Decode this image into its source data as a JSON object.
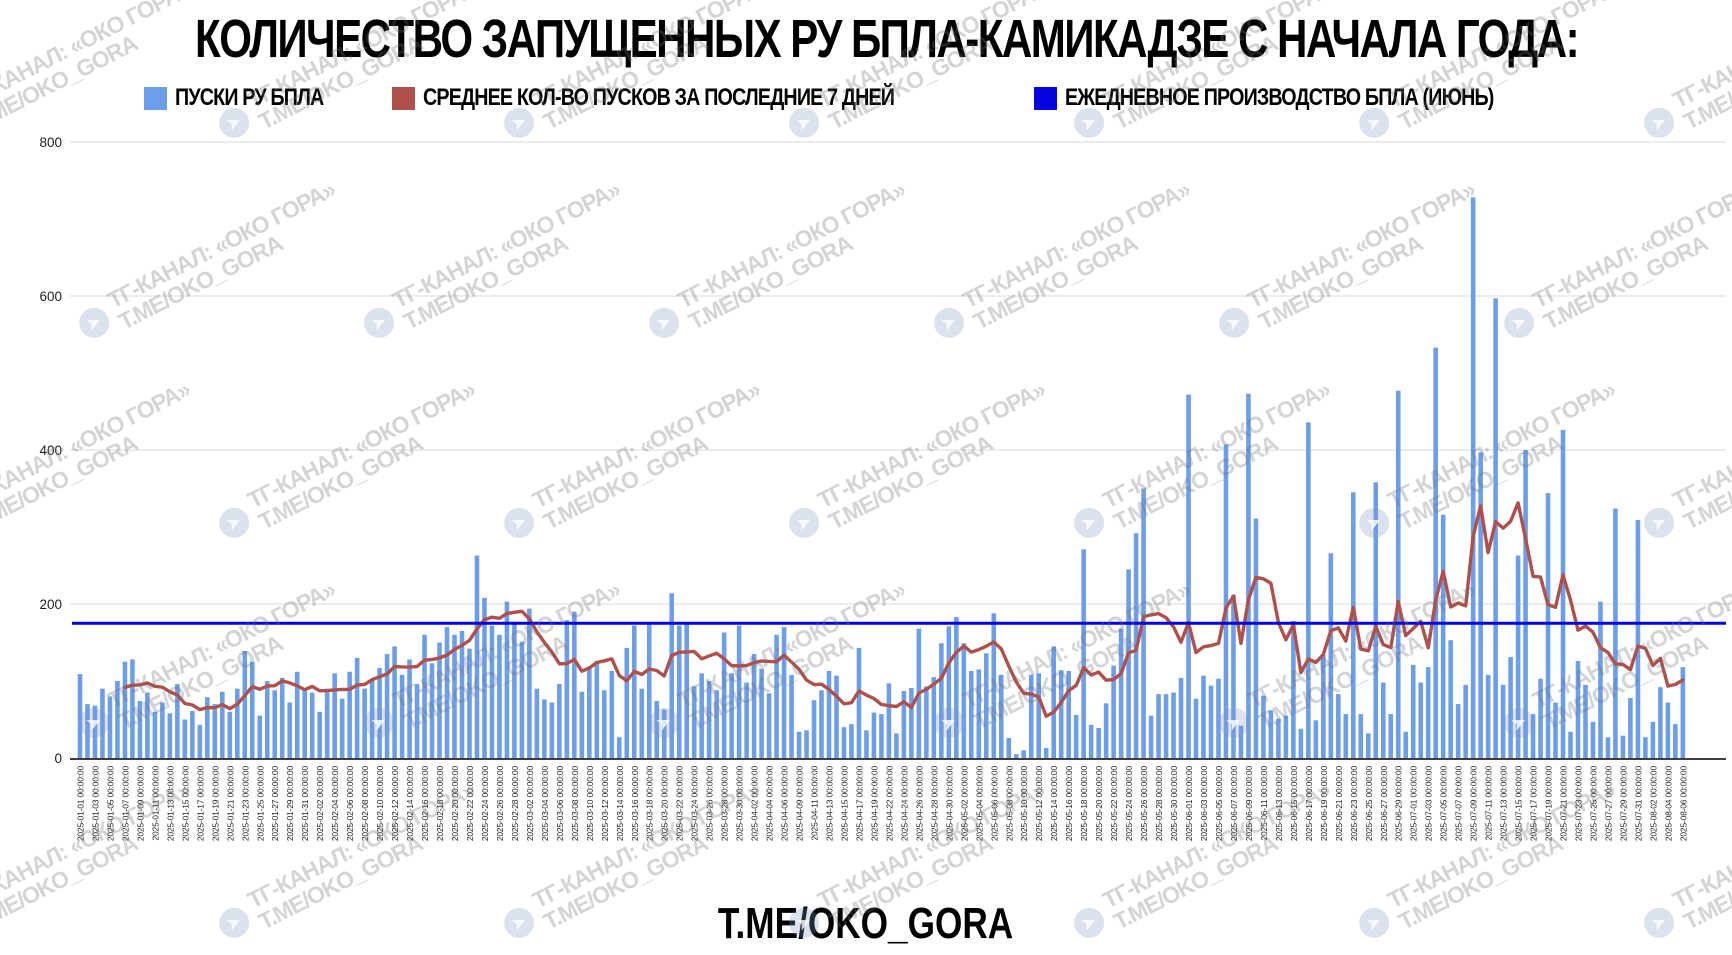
{
  "title": "КОЛИЧЕСТВО ЗАПУЩЕННЫХ РУ БПЛА-КАМИКАДЗЕ С НАЧАЛА ГОДА:",
  "footer": "T.ME/OKO_GORA",
  "watermark": {
    "line1": "ТГ-КАНАЛ: «ОКО ГОРА»",
    "line2": "T.ME/OKO_GORA"
  },
  "colors": {
    "bars": "#6d9eeb",
    "avg_line": "#b0504a",
    "production_line": "#0404e0",
    "grid": "#d9d9d9",
    "axis": "#3f3f3f",
    "tick_text": "#1f1f1f"
  },
  "legend": [
    {
      "label": "ПУСКИ РУ БПЛА",
      "color": "#6d9eeb"
    },
    {
      "label": "СРЕДНЕЕ КОЛ-ВО ПУСКОВ ЗА ПОСЛЕДНИЕ 7 ДНЕЙ",
      "color": "#b0504a"
    },
    {
      "label": "ЕЖЕДНЕВНОЕ ПРОИЗВОДСТВО БПЛА (ИЮНЬ)",
      "color": "#0404e0"
    }
  ],
  "chart_data": {
    "type": "bar",
    "title": "КОЛИЧЕСТВО ЗАПУЩЕННЫХ РУ БПЛА-КАМИКАДЗЕ С НАЧАЛА ГОДА:",
    "xlabel": "",
    "ylabel": "",
    "ylim": [
      0,
      800
    ],
    "yticks": [
      0,
      200,
      400,
      600,
      800
    ],
    "grid": true,
    "legend_position": "top",
    "tick_time_suffix": " 00:00:00",
    "x_tick_dates": [
      "2025-01-01",
      "2025-01-03",
      "2025-01-05",
      "2025-01-07",
      "2025-01-09",
      "2025-01-11",
      "2025-01-13",
      "2025-01-15",
      "2025-01-17",
      "2025-01-19",
      "2025-01-21",
      "2025-01-23",
      "2025-01-25",
      "2025-01-27",
      "2025-01-29",
      "2025-01-31",
      "2025-02-02",
      "2025-02-04",
      "2025-02-06",
      "2025-02-08",
      "2025-02-10",
      "2025-02-12",
      "2025-02-14",
      "2025-02-16",
      "2025-02-18",
      "2025-02-20",
      "2025-02-22",
      "2025-02-24",
      "2025-02-26",
      "2025-02-28",
      "2025-03-02",
      "2025-03-04",
      "2025-03-06",
      "2025-03-08",
      "2025-03-10",
      "2025-03-12",
      "2025-03-14",
      "2025-03-16",
      "2025-03-18",
      "2025-03-20",
      "2025-03-22",
      "2025-03-24",
      "2025-03-26",
      "2025-03-28",
      "2025-03-30",
      "2025-04-02",
      "2025-04-04",
      "2025-04-06",
      "2025-04-09",
      "2025-04-11",
      "2025-04-13",
      "2025-04-15",
      "2025-04-17",
      "2025-04-19",
      "2025-04-22",
      "2025-04-24",
      "2025-04-26",
      "2025-04-28",
      "2025-04-30",
      "2025-05-02",
      "2025-05-04",
      "2025-05-06",
      "2025-05-08",
      "2025-05-10",
      "2025-05-12",
      "2025-05-14",
      "2025-05-16",
      "2025-05-18",
      "2025-05-20",
      "2025-05-22",
      "2025-05-24",
      "2025-05-26",
      "2025-05-28",
      "2025-05-30",
      "2025-06-01",
      "2025-06-03",
      "2025-06-05",
      "2025-06-07",
      "2025-06-09",
      "2025-06-11",
      "2025-06-13",
      "2025-06-15",
      "2025-06-17",
      "2025-06-19",
      "2025-06-21",
      "2025-06-23",
      "2025-06-25",
      "2025-06-27",
      "2025-06-29",
      "2025-07-01",
      "2025-07-03",
      "2025-07-05",
      "2025-07-07",
      "2025-07-09",
      "2025-07-11",
      "2025-07-13",
      "2025-07-15",
      "2025-07-17",
      "2025-07-19",
      "2025-07-21",
      "2025-07-23",
      "2025-07-25",
      "2025-07-27",
      "2025-07-29",
      "2025-07-31",
      "2025-08-02",
      "2025-08-04",
      "2025-08-06"
    ],
    "series": [
      {
        "name": "ПУСКИ РУ БПЛА",
        "type": "bar",
        "color": "#6d9eeb",
        "values": [
          109,
          70,
          68,
          90,
          80,
          100,
          125,
          128,
          74,
          85,
          60,
          72,
          58,
          96,
          50,
          61,
          43,
          79,
          70,
          86,
          60,
          90,
          139,
          125,
          55,
          100,
          88,
          104,
          72,
          112,
          90,
          85,
          60,
          90,
          110,
          77,
          112,
          130,
          90,
          103,
          117,
          135,
          145,
          108,
          128,
          96,
          160,
          123,
          150,
          170,
          160,
          165,
          142,
          263,
          208,
          172,
          160,
          203,
          177,
          151,
          194,
          90,
          76,
          72,
          96,
          179,
          190,
          86,
          119,
          126,
          88,
          113,
          27,
          143,
          172,
          90,
          176,
          74,
          63,
          214,
          172,
          176,
          93,
          110,
          100,
          88,
          163,
          110,
          172,
          98,
          135,
          116,
          84,
          160,
          170,
          108,
          34,
          36,
          75,
          88,
          113,
          107,
          40,
          44,
          143,
          36,
          59,
          57,
          97,
          32,
          87,
          91,
          168,
          93,
          105,
          149,
          171,
          183,
          149,
          113,
          115,
          136,
          188,
          108,
          26,
          5,
          10,
          108,
          110,
          13,
          145,
          114,
          113,
          56,
          271,
          43,
          39,
          71,
          120,
          168,
          245,
          292,
          350,
          55,
          83,
          83,
          85,
          104,
          472,
          77,
          107,
          94,
          103,
          407,
          212,
          42,
          473,
          311,
          81,
          62,
          51,
          55,
          178,
          38,
          436,
          49,
          134,
          266,
          83,
          57,
          345,
          57,
          32,
          358,
          98,
          57,
          477,
          34,
          121,
          98,
          118,
          533,
          316,
          153,
          70,
          95,
          728,
          397,
          108,
          597,
          95,
          131,
          263,
          400,
          57,
          103,
          344,
          72,
          426,
          34,
          126,
          95,
          47,
          203,
          27,
          324,
          29,
          78,
          309,
          27,
          47,
          92,
          72,
          44,
          118
        ]
      },
      {
        "name": "СРЕДНЕЕ КОЛ-ВО ПУСКОВ ЗА ПОСЛЕДНИЕ 7 ДНЕЙ",
        "type": "line",
        "color": "#b0504a",
        "derived": "trailing_7_day_mean_of_bar_series"
      },
      {
        "name": "ЕЖЕДНЕВНОЕ ПРОИЗВОДСТВО БПЛА (ИЮНЬ)",
        "type": "hline",
        "color": "#0404e0",
        "value": 175
      }
    ]
  }
}
